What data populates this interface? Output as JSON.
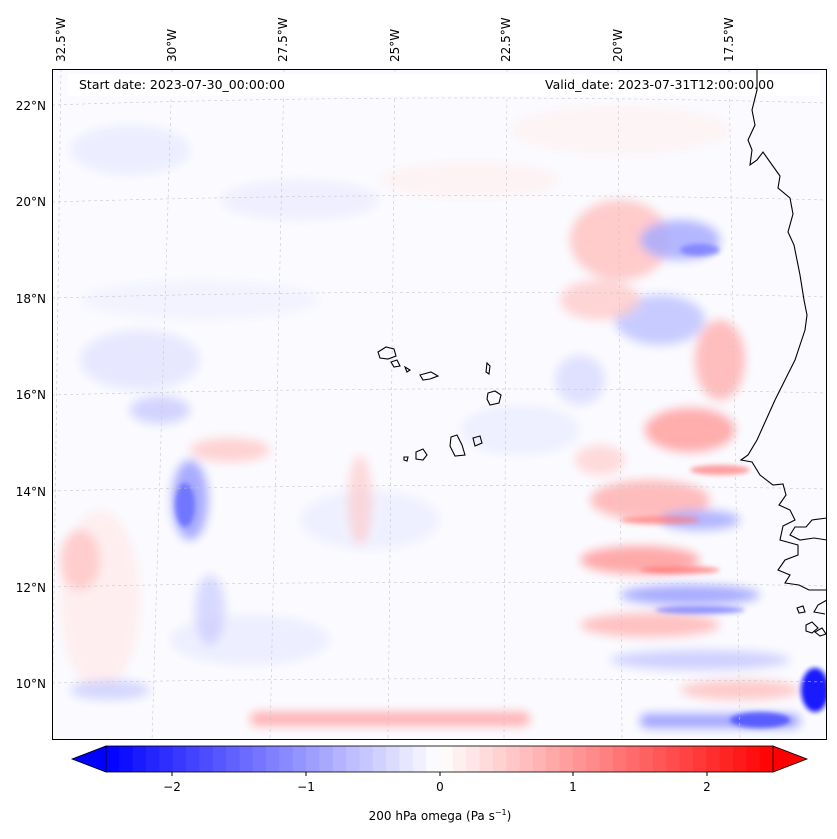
{
  "header": {
    "start_date": "Start date: 2023-07-30_00:00:00",
    "valid_date": "Valid_date: 2023-07-31T12:00:00.00"
  },
  "map": {
    "lon_ticks": [
      "32.5°W",
      "30°W",
      "27.5°W",
      "25°W",
      "22.5°W",
      "20°W",
      "17.5°W"
    ],
    "lat_ticks": [
      "22°N",
      "20°N",
      "18°N",
      "16°N",
      "14°N",
      "12°N",
      "10°N"
    ],
    "gridlines": true,
    "features": [
      "Cabo Verde islands",
      "West African coastline"
    ]
  },
  "colorbar": {
    "ticks": [
      "−2",
      "−1",
      "0",
      "1",
      "2"
    ],
    "label": "200 hPa omega (Pa s",
    "label_sup": "−1",
    "label_end": ")",
    "range": [
      -2.5,
      2.5
    ],
    "colormap": "bwr",
    "extend": "both"
  },
  "colors": {
    "negative": "#0000ff",
    "neutral": "#ffffff",
    "positive": "#ff0000",
    "coastline": "#000000",
    "grid": "#bbbbbb"
  }
}
